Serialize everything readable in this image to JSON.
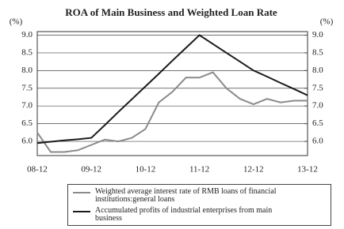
{
  "chart_data": {
    "type": "line",
    "title": "ROA of Main Business and Weighted Loan Rate",
    "y_unit": "(%)",
    "y2_unit": "(%)",
    "categories": [
      "08-12",
      null,
      null,
      null,
      "09-12",
      null,
      null,
      null,
      "10-12",
      null,
      null,
      null,
      "11-12",
      null,
      null,
      null,
      "12-12",
      null,
      null,
      null,
      "13-12"
    ],
    "series": [
      {
        "name": "Weighted average interest rate of RMB loans of financial institutions:general loans",
        "color": "#8a8a8a",
        "values": [
          6.25,
          5.7,
          5.7,
          5.75,
          5.9,
          6.05,
          6.0,
          6.1,
          6.35,
          7.1,
          7.4,
          7.8,
          7.8,
          7.95,
          7.5,
          7.2,
          7.05,
          7.2,
          7.1,
          7.15,
          7.15
        ]
      },
      {
        "name": "Accumulated profits of industrial enterprises from  main business",
        "color": "#1a1a1a",
        "values": [
          5.95,
          5.99,
          6.03,
          6.06,
          6.1,
          6.46,
          6.83,
          7.19,
          7.55,
          7.91,
          8.28,
          8.64,
          9.0,
          8.75,
          8.5,
          8.25,
          8.0,
          7.83,
          7.65,
          7.48,
          7.3
        ]
      }
    ],
    "ylim": [
      5.6,
      9.1
    ],
    "yticks": [
      {
        "value": 6,
        "label": "6.0"
      },
      6.5,
      {
        "value": 7,
        "label": "7.0"
      },
      7.5,
      {
        "value": 8,
        "label": "8.0"
      },
      8.5,
      {
        "value": 9,
        "label": "9.0"
      }
    ],
    "y2lim": [
      5.6,
      9.1
    ],
    "y2ticks": [
      {
        "value": 6,
        "label": "6.0"
      },
      6.5,
      {
        "value": 7,
        "label": "7.0"
      },
      7.5,
      {
        "value": 8,
        "label": "8.0"
      },
      8.5,
      {
        "value": 9,
        "label": "9.0"
      }
    ],
    "grid": true
  }
}
